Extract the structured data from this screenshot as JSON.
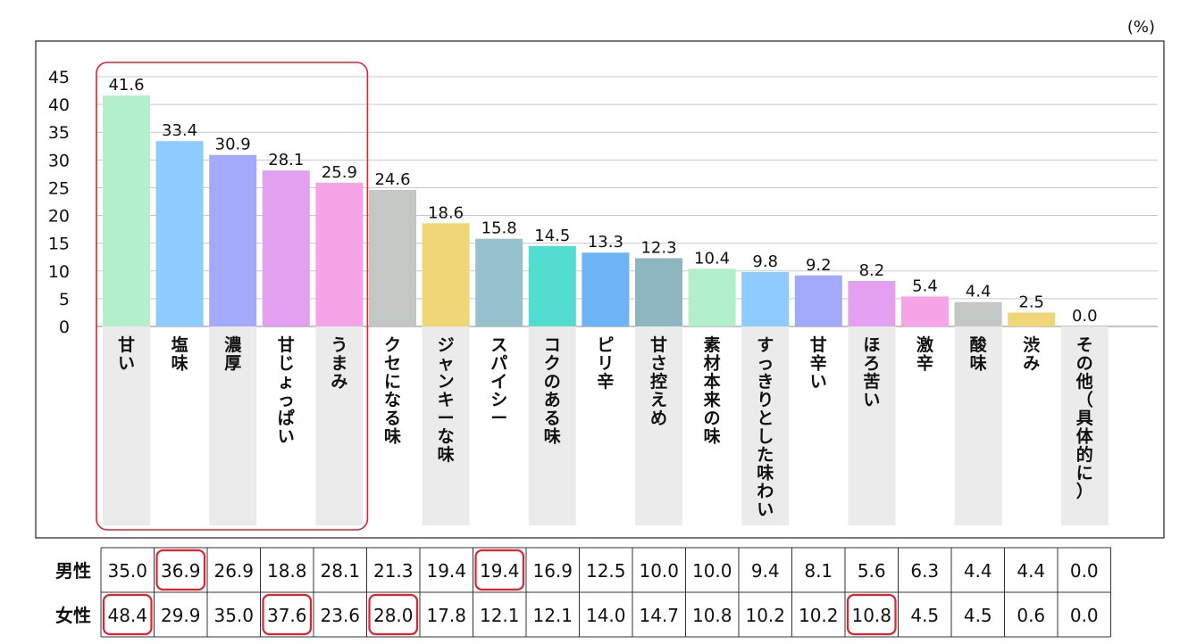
{
  "chart_data": {
    "type": "bar",
    "unit": "(%)",
    "yticks": [
      0,
      5,
      10,
      15,
      20,
      25,
      30,
      35,
      40,
      45
    ],
    "ylim": [
      0,
      45
    ],
    "grid": true,
    "categories": [
      "甘い",
      "塩味",
      "濃厚",
      "甘じょっぱい",
      "うまみ",
      "クセになる味",
      "ジャンキーな味",
      "スパイシー",
      "コクのある味",
      "ピリ辛",
      "甘さ控えめ",
      "素材本来の味",
      "すっきりとした味わい",
      "甘辛い",
      "ほろ苦い",
      "激辛",
      "酸味",
      "渋み",
      "その他（具体的に）"
    ],
    "values": [
      41.6,
      33.4,
      30.9,
      28.1,
      25.9,
      24.6,
      18.6,
      15.8,
      14.5,
      13.3,
      12.3,
      10.4,
      9.8,
      9.2,
      8.2,
      5.4,
      4.4,
      2.5,
      0.0
    ],
    "value_labels": [
      "41.6",
      "33.4",
      "30.9",
      "28.1",
      "25.9",
      "24.6",
      "18.6",
      "15.8",
      "14.5",
      "13.3",
      "12.3",
      "10.4",
      "9.8",
      "9.2",
      "8.2",
      "5.4",
      "4.4",
      "2.5",
      "0.0"
    ],
    "bar_colors": [
      "#b3f0cb",
      "#8ecbff",
      "#a3a9fb",
      "#e39ff0",
      "#f6a3e7",
      "#c3c8c4",
      "#f0d676",
      "#96c1cd",
      "#53ddd1",
      "#6cb4f5",
      "#8db6c0",
      "#b1f0cb",
      "#8ecbff",
      "#a3a9fb",
      "#e39ff0",
      "#f6a3e7",
      "#c3c8c4",
      "#f0d676",
      "#96c1cd"
    ],
    "highlight_box": {
      "from_category": 0,
      "to_category": 4,
      "color": "#e0232e"
    },
    "table": {
      "rows": [
        {
          "label": "男性",
          "values": [
            "35.0",
            "36.9",
            "26.9",
            "18.8",
            "28.1",
            "21.3",
            "19.4",
            "19.4",
            "16.9",
            "12.5",
            "10.0",
            "10.0",
            "9.4",
            "8.1",
            "5.6",
            "6.3",
            "4.4",
            "4.4",
            "0.0"
          ],
          "highlighted": [
            1,
            7
          ]
        },
        {
          "label": "女性",
          "values": [
            "48.4",
            "29.9",
            "35.0",
            "37.6",
            "23.6",
            "28.0",
            "17.8",
            "12.1",
            "12.1",
            "14.0",
            "14.7",
            "10.8",
            "10.2",
            "10.2",
            "10.8",
            "4.5",
            "4.5",
            "0.6",
            "0.0"
          ],
          "highlighted": [
            0,
            3,
            5,
            14
          ]
        }
      ]
    }
  }
}
